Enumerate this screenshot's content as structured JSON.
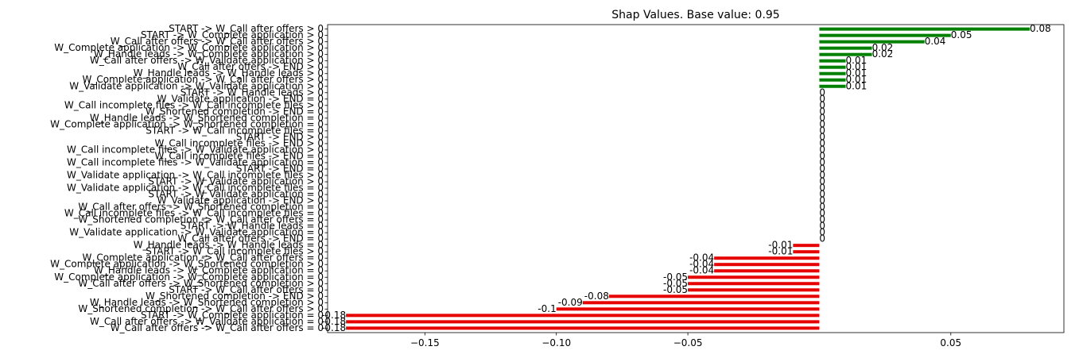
{
  "chart_data": {
    "type": "bar",
    "orientation": "horizontal",
    "title": "Shap Values. Base value: 0.95",
    "xlabel": "",
    "ylabel": "",
    "xlim": [
      -0.187,
      0.093
    ],
    "x_ticks": [
      -0.15,
      -0.1,
      -0.05,
      0.05
    ],
    "x_tick_labels": [
      "−0.15",
      "−0.10",
      "−0.05",
      "0.05"
    ],
    "grid": false,
    "colors": {
      "positive": "#008000",
      "negative": "#e60000"
    },
    "bars": [
      {
        "label": "START -> W_Call after offers > 0",
        "value": 0.08,
        "text": "0.08"
      },
      {
        "label": "START -> W_Complete application > 0",
        "value": 0.05,
        "text": "0.05"
      },
      {
        "label": "W_Call after offers -> W_Call after offers > 0",
        "value": 0.04,
        "text": "0.04"
      },
      {
        "label": "W_Complete application -> W_Complete application > 0",
        "value": 0.02,
        "text": "0.02"
      },
      {
        "label": "W_Handle leads -> W_Complete application > 0",
        "value": 0.02,
        "text": "0.02"
      },
      {
        "label": "W_Call after offers -> W_Validate application > 0",
        "value": 0.01,
        "text": "0.01"
      },
      {
        "label": "W_Call after offers -> END > 0",
        "value": 0.01,
        "text": "0.01"
      },
      {
        "label": "W_Handle leads -> W_Handle leads > 0",
        "value": 0.01,
        "text": "0.01"
      },
      {
        "label": "W_Complete application -> W_Call after offers > 0",
        "value": 0.01,
        "text": "0.01"
      },
      {
        "label": "W_Validate application -> W_Validate application > 0",
        "value": 0.01,
        "text": "0.01"
      },
      {
        "label": "START -> W_Handle leads > 0",
        "value": 0,
        "text": "0"
      },
      {
        "label": "W_Validate application -> END = 0",
        "value": 0,
        "text": "0"
      },
      {
        "label": "W_Call incomplete files -> W_Call incomplete files > 0",
        "value": 0,
        "text": "0"
      },
      {
        "label": "W_Shortened completion -> END = 0",
        "value": 0,
        "text": "0"
      },
      {
        "label": "W_Handle leads -> W_Shortened completion = 0",
        "value": 0,
        "text": "0"
      },
      {
        "label": "W_Complete application -> W_Shortened completion = 0",
        "value": 0,
        "text": "0"
      },
      {
        "label": "START -> W_Call incomplete files = 0",
        "value": 0,
        "text": "0"
      },
      {
        "label": "START -> END > 0",
        "value": 0,
        "text": "0"
      },
      {
        "label": "W_Call incomplete files -> END > 0",
        "value": 0,
        "text": "0"
      },
      {
        "label": "W_Call incomplete files -> W_Validate application > 0",
        "value": 0,
        "text": "0"
      },
      {
        "label": "W_Call incomplete files -> END = 0",
        "value": 0,
        "text": "0"
      },
      {
        "label": "W_Call incomplete files -> W_Validate application = 0",
        "value": 0,
        "text": "0"
      },
      {
        "label": "START -> END = 0",
        "value": 0,
        "text": "0"
      },
      {
        "label": "W_Validate application -> W_Call incomplete files > 0",
        "value": 0,
        "text": "0"
      },
      {
        "label": "START -> W_Validate application > 0",
        "value": 0,
        "text": "0"
      },
      {
        "label": "W_Validate application -> W_Call incomplete files = 0",
        "value": 0,
        "text": "0"
      },
      {
        "label": "START -> W_Validate application = 0",
        "value": 0,
        "text": "0"
      },
      {
        "label": "W_Validate application -> END > 0",
        "value": 0,
        "text": "0"
      },
      {
        "label": "W_Call after offers -> W_Shortened completion = 0",
        "value": 0,
        "text": "0"
      },
      {
        "label": "W_Call incomplete files -> W_Call incomplete files = 0",
        "value": 0,
        "text": "0"
      },
      {
        "label": "W_Shortened completion -> W_Call after offers = 0",
        "value": 0,
        "text": "0"
      },
      {
        "label": "START -> W_Handle leads = 0",
        "value": 0,
        "text": "0"
      },
      {
        "label": "W_Validate application -> W_Validate application = 0",
        "value": 0,
        "text": "0"
      },
      {
        "label": "W_Call after offers -> END = 0",
        "value": 0,
        "text": "0"
      },
      {
        "label": "W_Handle leads -> W_Handle leads = 0",
        "value": -0.01,
        "text": "-0.01"
      },
      {
        "label": "START -> W_Call incomplete files > 0",
        "value": -0.01,
        "text": "-0.01"
      },
      {
        "label": "W_Complete application -> W_Call after offers = 0",
        "value": -0.04,
        "text": "-0.04"
      },
      {
        "label": "W_Complete application -> W_Shortened completion > 0",
        "value": -0.04,
        "text": "-0.04"
      },
      {
        "label": "W_Handle leads -> W_Complete application = 0",
        "value": -0.04,
        "text": "-0.04"
      },
      {
        "label": "W_Complete application -> W_Complete application = 0",
        "value": -0.05,
        "text": "-0.05"
      },
      {
        "label": "W_Call after offers -> W_Shortened completion > 0",
        "value": -0.05,
        "text": "-0.05"
      },
      {
        "label": "START -> W_Call after offers = 0",
        "value": -0.05,
        "text": "-0.05"
      },
      {
        "label": "W_Shortened completion -> END > 0",
        "value": -0.08,
        "text": "-0.08"
      },
      {
        "label": "W_Handle leads -> W_Shortened completion > 0",
        "value": -0.09,
        "text": "-0.09"
      },
      {
        "label": "W_Shortened completion -> W_Call after offers > 0",
        "value": -0.1,
        "text": "-0.1"
      },
      {
        "label": "START -> W_Complete application = 0",
        "value": -0.18,
        "text": "-0.18"
      },
      {
        "label": "W_Call after offers -> W_Validate application = 0",
        "value": -0.18,
        "text": "-0.18"
      },
      {
        "label": "W_Call after offers -> W_Call after offers = 0",
        "value": -0.18,
        "text": "-0.18"
      }
    ]
  }
}
